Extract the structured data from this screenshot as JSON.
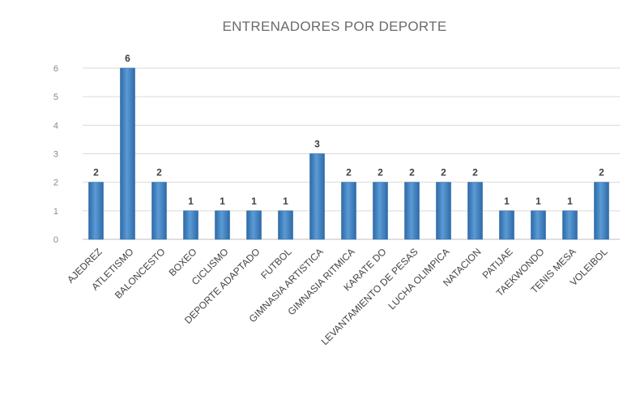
{
  "chart_data": {
    "type": "bar",
    "title": "ENTRENADORES POR DEPORTE",
    "xlabel": "",
    "ylabel": "",
    "categories": [
      "AJEDREZ",
      "ATLETISMO",
      "BALONCESTO",
      "BOXEO",
      "CICLISMO",
      "DEPORTE ADAPTADO",
      "FUTBOL",
      "GIMNASIA ARTISTICA",
      "GIMNASIA RITMICA",
      "KARATE DO",
      "LEVANTAMIENTO DE PESAS",
      "LUCHA OLIMPICA",
      "NATACION",
      "PATIJAE",
      "TAEKWONDO",
      "TENIS MESA",
      "VOLEIBOL"
    ],
    "values": [
      2,
      6,
      2,
      1,
      1,
      1,
      1,
      3,
      2,
      2,
      2,
      2,
      2,
      1,
      1,
      1,
      2
    ],
    "ylim": [
      0,
      6
    ],
    "yticks": [
      0,
      1,
      2,
      3,
      4,
      5,
      6
    ],
    "grid": true,
    "legend": "none",
    "colors": {
      "bar": "#5b9bd5",
      "bar_dark": "#2e6aa8",
      "bar_light": "#8fbbe6"
    }
  }
}
